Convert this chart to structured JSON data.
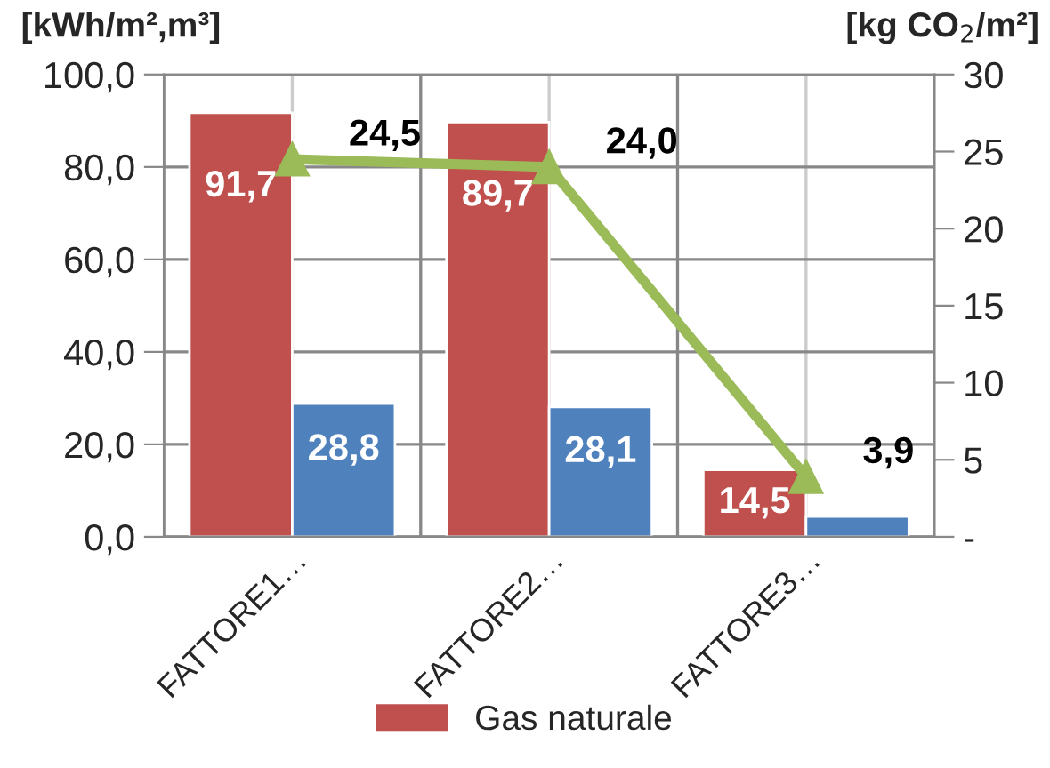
{
  "chart_data": {
    "type": "bar",
    "ylabel": "[kWh/m²,m³]",
    "y2label": "[kg CO$_{2}$/m²]",
    "categories": [
      "FATTORE1…",
      "FATTORE2…",
      "FATTORE3…"
    ],
    "series": [
      {
        "name": "Gas naturale",
        "color": "#c0504d",
        "values": [
          91.7,
          89.7,
          14.5
        ],
        "value_labels": [
          "91,7",
          "89,7",
          "14,5"
        ]
      },
      {
        "color": "#4f81bd",
        "values": [
          28.8,
          28.1,
          4.4
        ],
        "value_labels": [
          "28,8",
          "28,1",
          null
        ]
      },
      {
        "type": "line",
        "axis": "y2",
        "color": "#9bbb59",
        "values": [
          24.5,
          24.0,
          3.9
        ],
        "value_labels": [
          "24,5",
          "24,0",
          "3,9"
        ]
      }
    ],
    "ylim": [
      0,
      100
    ],
    "yticks": [
      {
        "value": 0,
        "label": "0,0"
      },
      {
        "value": 20,
        "label": "20,0"
      },
      {
        "value": 40,
        "label": "40,0"
      },
      {
        "value": 60,
        "label": "60,0"
      },
      {
        "value": 80,
        "label": "80,0"
      },
      {
        "value": 100,
        "label": "100,0"
      }
    ],
    "y2lim": [
      0,
      30
    ],
    "y2ticks": [
      {
        "value": 0,
        "label": "-"
      },
      5,
      10,
      15,
      20,
      25,
      30
    ],
    "grid": true,
    "legend": "bottom",
    "marker": "triangle"
  }
}
